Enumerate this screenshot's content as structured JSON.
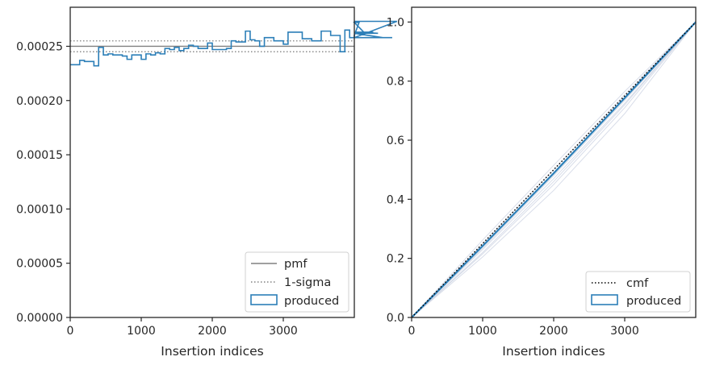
{
  "colors": {
    "produced": "#2c7fb8",
    "pmf": "#808080",
    "sigma": "#808080",
    "cmf": "#000000",
    "ghost": "#c8cfe0",
    "axes": "#262626",
    "background": "#ffffff"
  },
  "chart_data": [
    {
      "type": "step",
      "xlabel": "Insertion indices",
      "ylabel": "",
      "xlim": [
        0,
        4000
      ],
      "ylim": [
        0,
        0.000286
      ],
      "xticks": [
        0,
        1000,
        2000,
        3000
      ],
      "xtick_labels": [
        "0",
        "1000",
        "2000",
        "3000"
      ],
      "yticks": [
        0,
        5e-05,
        0.0001,
        0.00015,
        0.0002,
        0.00025
      ],
      "ytick_labels": [
        "0.00000",
        "0.00005",
        "0.00010",
        "0.00015",
        "0.00020",
        "0.00025"
      ],
      "grid": false,
      "legend_position": "lower-right",
      "legend": [
        "pmf",
        "1-sigma",
        "produced"
      ],
      "pmf": 0.00025,
      "sigma_band": [
        0.000245,
        0.000255
      ],
      "series": [
        {
          "name": "produced",
          "bin_width": 66.67,
          "values": [
            0.000233,
            0.000233,
            0.000237,
            0.000236,
            0.000236,
            0.000232,
            0.000249,
            0.000242,
            0.000243,
            0.000242,
            0.000242,
            0.000241,
            0.000238,
            0.000242,
            0.000242,
            0.000238,
            0.000243,
            0.000242,
            0.000244,
            0.000243,
            0.000248,
            0.000247,
            0.000249,
            0.000246,
            0.000248,
            0.000251,
            0.00025,
            0.000248,
            0.000248,
            0.000253,
            0.000247,
            0.000247,
            0.000247,
            0.000248,
            0.000255,
            0.000254,
            0.000254,
            0.000264,
            0.000256,
            0.000255,
            0.00025,
            0.000258,
            0.000258,
            0.000255,
            0.000255,
            0.000252,
            0.000263,
            0.000263,
            0.000263,
            0.000257,
            0.000257,
            0.000255,
            0.000255,
            0.000264,
            0.000264,
            0.00026,
            0.00026,
            0.000245,
            0.000265,
            0.000258,
            0.00026,
            0.000272,
            0.000263,
            0.000262,
            0.000263,
            0.000262,
            0.000258,
            0.000258,
            0.000258,
            0.000273
          ]
        }
      ]
    },
    {
      "type": "line",
      "xlabel": "Insertion indices",
      "ylabel": "",
      "xlim": [
        0,
        4000
      ],
      "ylim": [
        0,
        1.05
      ],
      "xticks": [
        0,
        1000,
        2000,
        3000
      ],
      "xtick_labels": [
        "0",
        "1000",
        "2000",
        "3000"
      ],
      "yticks": [
        0,
        0.2,
        0.4,
        0.6,
        0.8,
        1.0
      ],
      "ytick_labels": [
        "0.0",
        "0.2",
        "0.4",
        "0.6",
        "0.8",
        "1.0"
      ],
      "grid": false,
      "legend_position": "lower-right",
      "legend": [
        "cmf",
        "produced"
      ],
      "series": [
        {
          "name": "cmf",
          "x": [
            0,
            4000
          ],
          "y": [
            0,
            1
          ]
        },
        {
          "name": "produced",
          "x": [
            0,
            1000,
            2000,
            3000,
            4000
          ],
          "y": [
            0,
            0.242,
            0.488,
            0.743,
            1
          ]
        }
      ],
      "ghost_curves": [
        {
          "x": [
            0,
            1000,
            2000,
            3000,
            4000
          ],
          "y": [
            0,
            0.205,
            0.43,
            0.69,
            1
          ]
        },
        {
          "x": [
            0,
            1000,
            2000,
            3000,
            4000
          ],
          "y": [
            0,
            0.215,
            0.45,
            0.71,
            1
          ]
        },
        {
          "x": [
            0,
            1000,
            2000,
            3000,
            4000
          ],
          "y": [
            0,
            0.23,
            0.47,
            0.725,
            1
          ]
        },
        {
          "x": [
            0,
            1000,
            2000,
            3000,
            4000
          ],
          "y": [
            0,
            0.25,
            0.5,
            0.755,
            1
          ]
        },
        {
          "x": [
            0,
            1000,
            2000,
            3000,
            4000
          ],
          "y": [
            0,
            0.262,
            0.515,
            0.765,
            1
          ]
        },
        {
          "x": [
            0,
            1000,
            2000,
            3000,
            4000
          ],
          "y": [
            0,
            0.235,
            0.48,
            0.735,
            1
          ]
        },
        {
          "x": [
            0,
            1000,
            2000,
            3000,
            4000
          ],
          "y": [
            0,
            0.22,
            0.46,
            0.72,
            1
          ]
        }
      ]
    }
  ]
}
